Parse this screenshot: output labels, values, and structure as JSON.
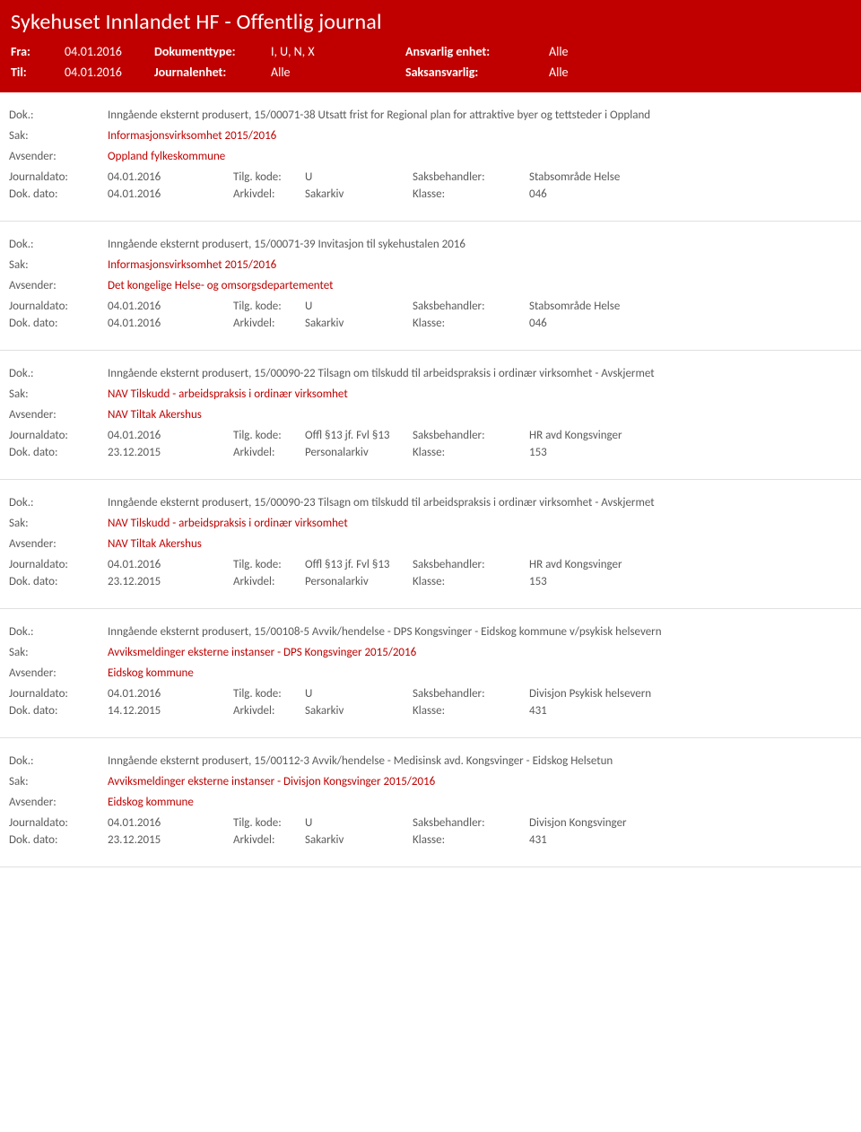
{
  "header": {
    "title": "Sykehuset Innlandet HF - Offentlig journal",
    "fra_label": "Fra:",
    "fra_value": "04.01.2016",
    "til_label": "Til:",
    "til_value": "04.01.2016",
    "dokumenttype_label": "Dokumenttype:",
    "dokumenttype_value": "I, U, N, X",
    "journalenhet_label": "Journalenhet:",
    "journalenhet_value": "Alle",
    "ansvarlig_label": "Ansvarlig enhet:",
    "ansvarlig_value": "Alle",
    "saksansvarlig_label": "Saksansvarlig:",
    "saksansvarlig_value": "Alle"
  },
  "labels": {
    "dok": "Dok.:",
    "sak": "Sak:",
    "avsender": "Avsender:",
    "journaldato": "Journaldato:",
    "dokdato": "Dok. dato:",
    "tilgkode": "Tilg. kode:",
    "arkivdel": "Arkivdel:",
    "saksbehandler": "Saksbehandler:",
    "klasse": "Klasse:"
  },
  "entries": [
    {
      "dok": "Inngående eksternt produsert, 15/00071-38 Utsatt frist for Regional plan for attraktive byer og tettsteder i Oppland",
      "sak": "Informasjonsvirksomhet 2015/2016",
      "avsender": "Oppland fylkeskommune",
      "journaldato": "04.01.2016",
      "tilgkode": "U",
      "saksbehandler": "Stabsområde Helse",
      "dokdato": "04.01.2016",
      "arkivdel": "Sakarkiv",
      "klasse": "046"
    },
    {
      "dok": "Inngående eksternt produsert, 15/00071-39 Invitasjon til sykehustalen 2016",
      "sak": "Informasjonsvirksomhet 2015/2016",
      "avsender": "Det kongelige Helse- og omsorgsdepartementet",
      "journaldato": "04.01.2016",
      "tilgkode": "U",
      "saksbehandler": "Stabsområde Helse",
      "dokdato": "04.01.2016",
      "arkivdel": "Sakarkiv",
      "klasse": "046"
    },
    {
      "dok": "Inngående eksternt produsert, 15/00090-22 Tilsagn om tilskudd til arbeidspraksis i ordinær virksomhet - Avskjermet",
      "sak": "NAV Tilskudd - arbeidspraksis i ordinær virksomhet",
      "avsender": "NAV Tiltak Akershus",
      "journaldato": "04.01.2016",
      "tilgkode": "Offl §13 jf. Fvl §13",
      "saksbehandler": "HR avd Kongsvinger",
      "dokdato": "23.12.2015",
      "arkivdel": "Personalarkiv",
      "klasse": "153"
    },
    {
      "dok": "Inngående eksternt produsert, 15/00090-23 Tilsagn om tilskudd til arbeidspraksis i ordinær virksomhet - Avskjermet",
      "sak": "NAV Tilskudd - arbeidspraksis i ordinær virksomhet",
      "avsender": "NAV Tiltak Akershus",
      "journaldato": "04.01.2016",
      "tilgkode": "Offl §13 jf. Fvl §13",
      "saksbehandler": "HR avd Kongsvinger",
      "dokdato": "23.12.2015",
      "arkivdel": "Personalarkiv",
      "klasse": "153"
    },
    {
      "dok": "Inngående eksternt produsert, 15/00108-5 Avvik/hendelse - DPS Kongsvinger - Eidskog kommune v/psykisk helsevern",
      "sak": "Avviksmeldinger eksterne instanser - DPS Kongsvinger 2015/2016",
      "avsender": "Eidskog kommune",
      "journaldato": "04.01.2016",
      "tilgkode": "U",
      "saksbehandler": "Divisjon Psykisk helsevern",
      "dokdato": "14.12.2015",
      "arkivdel": "Sakarkiv",
      "klasse": "431"
    },
    {
      "dok": "Inngående eksternt produsert, 15/00112-3 Avvik/hendelse - Medisinsk avd. Kongsvinger - Eidskog Helsetun",
      "sak": "Avviksmeldinger eksterne instanser - Divisjon Kongsvinger 2015/2016",
      "avsender": "Eidskog kommune",
      "journaldato": "04.01.2016",
      "tilgkode": "U",
      "saksbehandler": "Divisjon Kongsvinger",
      "dokdato": "23.12.2015",
      "arkivdel": "Sakarkiv",
      "klasse": "431"
    }
  ]
}
